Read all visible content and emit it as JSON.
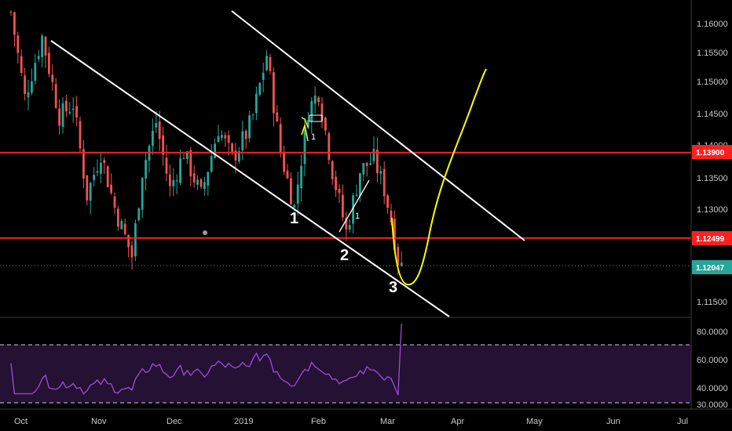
{
  "chart_data": {
    "type": "candlestick",
    "instrument": "",
    "price_axis": {
      "min": 1.112,
      "max": 1.164,
      "ticks": [
        "1.16000",
        "1.15500",
        "1.15000",
        "1.14500",
        "1.14000",
        "1.13500",
        "1.13000",
        "1.12500",
        "1.11500"
      ]
    },
    "time_axis": {
      "labels": [
        "Oct",
        "Nov",
        "Dec",
        "2019",
        "Feb",
        "Mar",
        "Apr",
        "May",
        "Jun",
        "Jul"
      ]
    },
    "candles": {
      "count": 114,
      "start_price": 1.162,
      "pivots": [
        {
          "i": 0,
          "p": 1.162
        },
        {
          "i": 4,
          "p": 1.148
        },
        {
          "i": 9,
          "p": 1.158
        },
        {
          "i": 14,
          "p": 1.145
        },
        {
          "i": 18,
          "p": 1.147
        },
        {
          "i": 22,
          "p": 1.132
        },
        {
          "i": 26,
          "p": 1.139
        },
        {
          "i": 30,
          "p": 1.13
        },
        {
          "i": 35,
          "p": 1.122
        },
        {
          "i": 38,
          "p": 1.136
        },
        {
          "i": 42,
          "p": 1.144
        },
        {
          "i": 46,
          "p": 1.133
        },
        {
          "i": 50,
          "p": 1.139
        },
        {
          "i": 55,
          "p": 1.132
        },
        {
          "i": 60,
          "p": 1.143
        },
        {
          "i": 64,
          "p": 1.138
        },
        {
          "i": 68,
          "p": 1.142
        },
        {
          "i": 70,
          "p": 1.145
        },
        {
          "i": 74,
          "p": 1.155
        },
        {
          "i": 78,
          "p": 1.139
        },
        {
          "i": 82,
          "p": 1.13
        },
        {
          "i": 86,
          "p": 1.146
        },
        {
          "i": 89,
          "p": 1.149
        },
        {
          "i": 93,
          "p": 1.136
        },
        {
          "i": 97,
          "p": 1.126
        },
        {
          "i": 101,
          "p": 1.136
        },
        {
          "i": 105,
          "p": 1.138
        },
        {
          "i": 108,
          "p": 1.133
        },
        {
          "i": 110,
          "p": 1.128
        },
        {
          "i": 112,
          "p": 1.1215
        },
        {
          "i": 113,
          "p": 1.1205
        }
      ],
      "up_color": "#26a69a",
      "down_color": "#ef5350"
    },
    "levels": [
      {
        "price": 1.139,
        "label": "1.13900",
        "color": "#ff1f1f"
      },
      {
        "price": 1.125,
        "label": "1.12499",
        "color": "#ff1f1f"
      }
    ],
    "last_price": {
      "price": 1.12047,
      "label": "1.12047",
      "color": "#26a69a"
    },
    "wave_labels": [
      "1",
      "2",
      "3"
    ],
    "minor_labels": [
      "1",
      "1"
    ],
    "rsi": {
      "ticks": [
        "80.0000",
        "60.0000",
        "40.0000",
        "30.0000"
      ],
      "band_upper": 70,
      "band_lower": 30,
      "line_color": "#9c4fd6",
      "band_fill": "#241134"
    },
    "colors": {
      "background": "#000000",
      "trendline": "#ffffff",
      "projection": "#ffff00",
      "axis_text": "#c8c8c8"
    }
  }
}
